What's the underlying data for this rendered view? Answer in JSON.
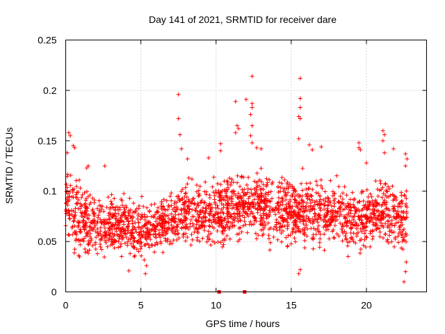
{
  "chart_data": {
    "type": "scatter",
    "title": "Day 141 of 2021, SRMTID for receiver dare",
    "xlabel": "GPS time / hours",
    "ylabel": "SRMTID / TECUs",
    "xlim": [
      0,
      24
    ],
    "ylim": [
      0,
      0.25
    ],
    "xticks": [
      0,
      5,
      10,
      15,
      20
    ],
    "xtick_labels": [
      "0",
      "5",
      "10",
      "15",
      "20"
    ],
    "yticks": [
      0,
      0.05,
      0.1,
      0.15,
      0.2,
      0.25
    ],
    "ytick_labels": [
      "0",
      "0.05",
      "0.1",
      "0.15",
      "0.2",
      "0.25"
    ],
    "grid": true,
    "marker": "plus",
    "color": "#ff0000",
    "x_extent": [
      0,
      22.7
    ],
    "envelope": [
      {
        "x": 0,
        "low": 0.045,
        "high": 0.13
      },
      {
        "x": 1,
        "low": 0.02,
        "high": 0.12
      },
      {
        "x": 2,
        "low": 0.03,
        "high": 0.105
      },
      {
        "x": 3,
        "low": 0.025,
        "high": 0.105
      },
      {
        "x": 4,
        "low": 0.025,
        "high": 0.1
      },
      {
        "x": 5,
        "low": 0.02,
        "high": 0.1
      },
      {
        "x": 6,
        "low": 0.025,
        "high": 0.105
      },
      {
        "x": 7,
        "low": 0.03,
        "high": 0.11
      },
      {
        "x": 8,
        "low": 0.035,
        "high": 0.125
      },
      {
        "x": 9,
        "low": 0.03,
        "high": 0.12
      },
      {
        "x": 10,
        "low": 0.03,
        "high": 0.125
      },
      {
        "x": 11,
        "low": 0.035,
        "high": 0.13
      },
      {
        "x": 12,
        "low": 0.04,
        "high": 0.13
      },
      {
        "x": 13,
        "low": 0.04,
        "high": 0.13
      },
      {
        "x": 14,
        "low": 0.035,
        "high": 0.13
      },
      {
        "x": 15,
        "low": 0.03,
        "high": 0.125
      },
      {
        "x": 16,
        "low": 0.035,
        "high": 0.125
      },
      {
        "x": 17,
        "low": 0.035,
        "high": 0.12
      },
      {
        "x": 18,
        "low": 0.03,
        "high": 0.12
      },
      {
        "x": 19,
        "low": 0.03,
        "high": 0.11
      },
      {
        "x": 20,
        "low": 0.035,
        "high": 0.115
      },
      {
        "x": 21,
        "low": 0.035,
        "high": 0.12
      },
      {
        "x": 22,
        "low": 0.025,
        "high": 0.12
      },
      {
        "x": 22.7,
        "low": 0.02,
        "high": 0.115
      }
    ],
    "points_count": 2200,
    "outliers": [
      {
        "x": 0.2,
        "y": 0.158
      },
      {
        "x": 0.3,
        "y": 0.155
      },
      {
        "x": 0.5,
        "y": 0.145
      },
      {
        "x": 0.6,
        "y": 0.143
      },
      {
        "x": 0.1,
        "y": 0.138
      },
      {
        "x": 1.5,
        "y": 0.125
      },
      {
        "x": 1.4,
        "y": 0.123
      },
      {
        "x": 2.6,
        "y": 0.125
      },
      {
        "x": 7.5,
        "y": 0.196
      },
      {
        "x": 7.5,
        "y": 0.172
      },
      {
        "x": 7.6,
        "y": 0.156
      },
      {
        "x": 7.7,
        "y": 0.142
      },
      {
        "x": 8.1,
        "y": 0.132
      },
      {
        "x": 9.5,
        "y": 0.133
      },
      {
        "x": 10.3,
        "y": 0.147
      },
      {
        "x": 10.3,
        "y": 0.14
      },
      {
        "x": 11.3,
        "y": 0.189
      },
      {
        "x": 11.4,
        "y": 0.165
      },
      {
        "x": 11.5,
        "y": 0.162
      },
      {
        "x": 11.3,
        "y": 0.158
      },
      {
        "x": 12.0,
        "y": 0.191
      },
      {
        "x": 12.4,
        "y": 0.214
      },
      {
        "x": 12.4,
        "y": 0.187
      },
      {
        "x": 12.4,
        "y": 0.183
      },
      {
        "x": 12.3,
        "y": 0.176
      },
      {
        "x": 12.4,
        "y": 0.165
      },
      {
        "x": 12.3,
        "y": 0.155
      },
      {
        "x": 12.4,
        "y": 0.148
      },
      {
        "x": 12.7,
        "y": 0.143
      },
      {
        "x": 13.0,
        "y": 0.142
      },
      {
        "x": 15.6,
        "y": 0.212
      },
      {
        "x": 15.6,
        "y": 0.192
      },
      {
        "x": 15.6,
        "y": 0.183
      },
      {
        "x": 15.5,
        "y": 0.174
      },
      {
        "x": 15.6,
        "y": 0.172
      },
      {
        "x": 15.5,
        "y": 0.152
      },
      {
        "x": 16.2,
        "y": 0.146
      },
      {
        "x": 16.4,
        "y": 0.141
      },
      {
        "x": 17.0,
        "y": 0.144
      },
      {
        "x": 19.5,
        "y": 0.148
      },
      {
        "x": 19.5,
        "y": 0.143
      },
      {
        "x": 19.6,
        "y": 0.141
      },
      {
        "x": 20.0,
        "y": 0.128
      },
      {
        "x": 21.1,
        "y": 0.16
      },
      {
        "x": 21.2,
        "y": 0.156
      },
      {
        "x": 21.1,
        "y": 0.15
      },
      {
        "x": 21.2,
        "y": 0.138
      },
      {
        "x": 21.8,
        "y": 0.142
      },
      {
        "x": 22.6,
        "y": 0.137
      },
      {
        "x": 22.7,
        "y": 0.132
      },
      {
        "x": 22.6,
        "y": 0.125
      },
      {
        "x": 22.5,
        "y": 0.01
      },
      {
        "x": 22.6,
        "y": 0.02
      },
      {
        "x": 15.5,
        "y": 0.018
      },
      {
        "x": 15.6,
        "y": 0.022
      },
      {
        "x": 4.2,
        "y": 0.021
      },
      {
        "x": 5.3,
        "y": 0.018
      }
    ],
    "zero_markers": [
      {
        "x": 10.2,
        "y": 0
      },
      {
        "x": 11.9,
        "y": 0
      }
    ]
  }
}
